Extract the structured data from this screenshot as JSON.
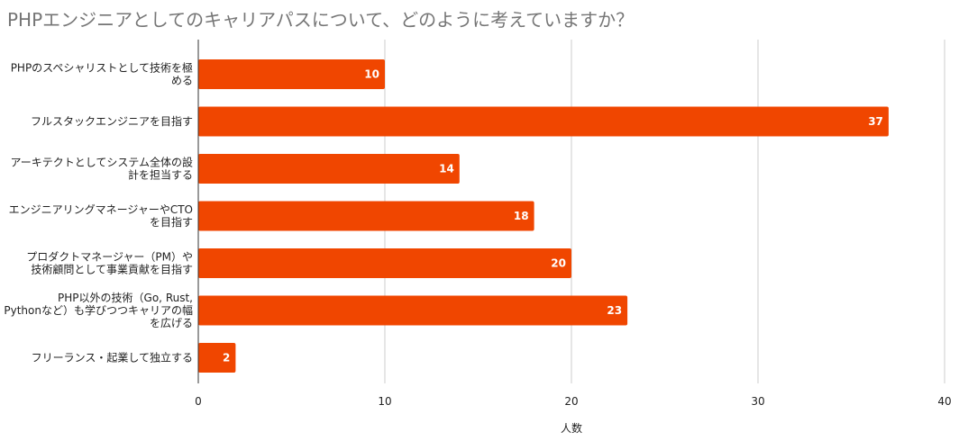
{
  "chart_data": {
    "type": "bar",
    "orientation": "horizontal",
    "title": "PHPエンジニアとしてのキャリアパスについて、どのように考えていますか？",
    "xlabel": "人数",
    "ylabel": "",
    "xlim": [
      0,
      40
    ],
    "xticks": [
      0,
      10,
      20,
      30,
      40
    ],
    "grid": true,
    "legend": "none",
    "bar_color": "#f04600",
    "categories": [
      [
        "PHPのスペシャリストとして技術を極",
        "める"
      ],
      [
        "フルスタックエンジニアを目指す"
      ],
      [
        "アーキテクトとしてシステム全体の設",
        "計を担当する"
      ],
      [
        "エンジニアリングマネージャーやCTO",
        "を目指す"
      ],
      [
        "プロダクトマネージャー（PM）や",
        "技術顧問として事業貢献を目指す"
      ],
      [
        "PHP以外の技術（Go, Rust,",
        "Pythonなど）も学びつつキャリアの幅",
        "を広げる"
      ],
      [
        "フリーランス・起業して独立する"
      ]
    ],
    "values": [
      10,
      37,
      14,
      18,
      20,
      23,
      2
    ]
  }
}
